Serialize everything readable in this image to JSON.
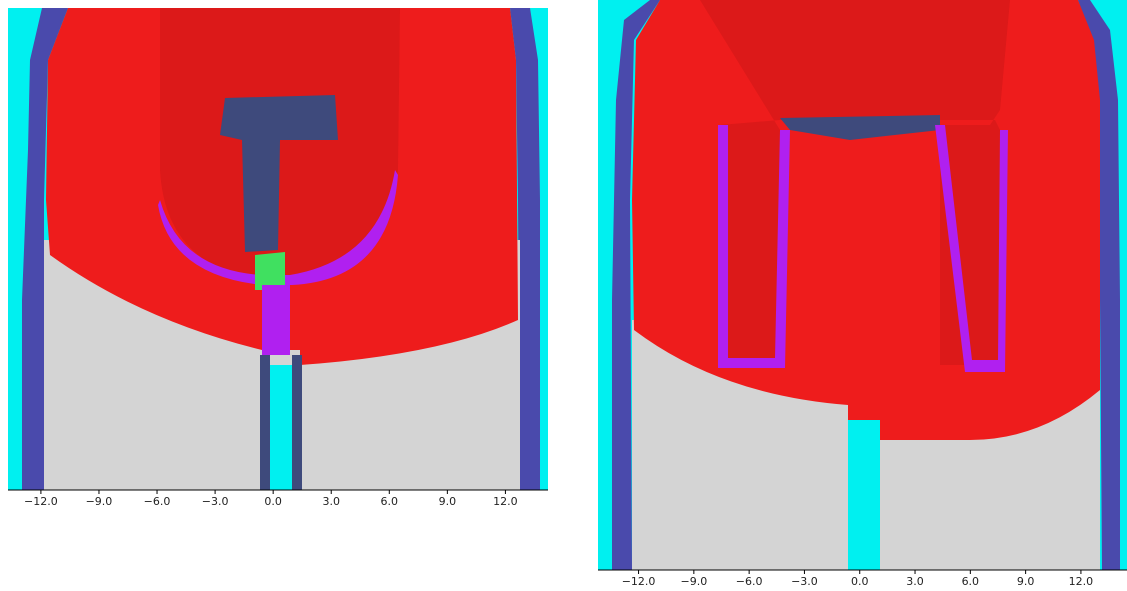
{
  "chart_data": [
    {
      "type": "field",
      "xlim": [
        -13.7,
        14.2
      ],
      "xticks": [
        {
          "value": -12,
          "label": "−12.0"
        },
        {
          "value": -9,
          "label": "−9.0"
        },
        {
          "value": -6,
          "label": "−6.0"
        },
        {
          "value": -3,
          "label": "−3.0"
        },
        {
          "value": 0,
          "label": "0.0"
        },
        {
          "value": 3,
          "label": "3.0"
        },
        {
          "value": 6,
          "label": "6.0"
        },
        {
          "value": 9,
          "label": "9.0"
        },
        {
          "value": 12,
          "label": "12.0"
        }
      ]
    },
    {
      "type": "field",
      "xlim": [
        -14.2,
        14.5
      ],
      "xticks": [
        {
          "value": -12,
          "label": "−12.0"
        },
        {
          "value": -9,
          "label": "−9.0"
        },
        {
          "value": -6,
          "label": "−6.0"
        },
        {
          "value": -3,
          "label": "−3.0"
        },
        {
          "value": 0,
          "label": "0.0"
        },
        {
          "value": 3,
          "label": "3.0"
        },
        {
          "value": 6,
          "label": "6.0"
        },
        {
          "value": 9,
          "label": "9.0"
        },
        {
          "value": 12,
          "label": "12.0"
        }
      ]
    }
  ]
}
